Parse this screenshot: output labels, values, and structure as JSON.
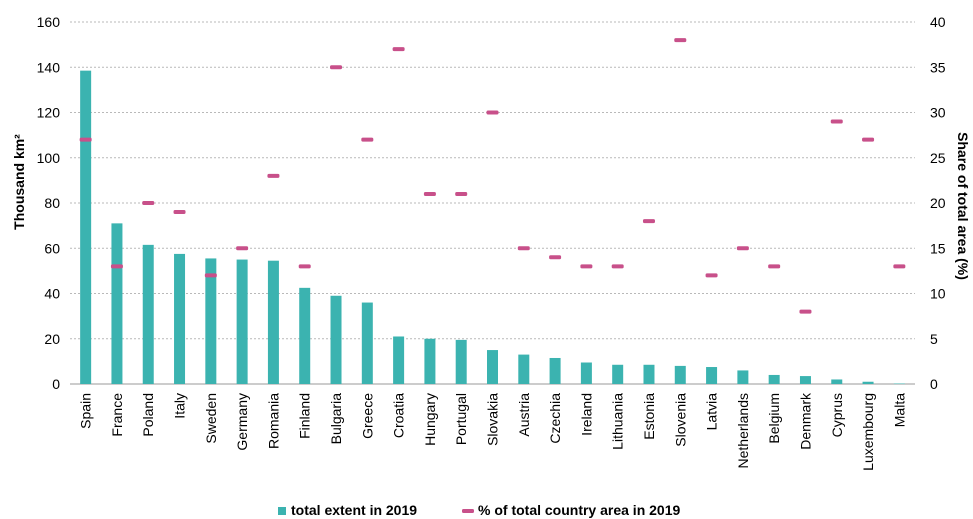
{
  "chart_data": {
    "type": "bar",
    "categories": [
      "Spain",
      "France",
      "Poland",
      "Italy",
      "Sweden",
      "Germany",
      "Romania",
      "Finland",
      "Bulgaria",
      "Greece",
      "Croatia",
      "Hungary",
      "Portugal",
      "Slovakia",
      "Austria",
      "Czechia",
      "Ireland",
      "Lithuania",
      "Estonia",
      "Slovenia",
      "Latvia",
      "Netherlands",
      "Belgium",
      "Denmark",
      "Cyprus",
      "Luxembourg",
      "Malta"
    ],
    "series": [
      {
        "name": "total extent in 2019",
        "type": "bar",
        "axis": "left",
        "color": "#3bb3b0",
        "values": [
          138.5,
          71,
          61.5,
          57.5,
          55.5,
          55,
          54.5,
          42.5,
          39,
          36,
          21,
          20,
          19.5,
          15,
          13,
          11.5,
          9.5,
          8.5,
          8.5,
          8,
          7.5,
          6,
          4,
          3.5,
          2,
          1,
          0.2
        ]
      },
      {
        "name": "% of total country area in 2019",
        "type": "marker",
        "axis": "right",
        "color": "#c8508a",
        "values": [
          27,
          13,
          20,
          19,
          12,
          15,
          23,
          13,
          35,
          27,
          37,
          21,
          21,
          30,
          15,
          14,
          13,
          13,
          18,
          38,
          12,
          15,
          13,
          8,
          29,
          27,
          13
        ]
      }
    ],
    "ylabel": "Thousand km²",
    "y2label": "Share of total area (%)",
    "ylim": [
      0,
      160
    ],
    "y2lim": [
      0,
      40
    ],
    "yticks": [
      "0",
      "20",
      "40",
      "60",
      "80",
      "100",
      "120",
      "140",
      "160"
    ],
    "y2ticks": [
      "0",
      "5",
      "10",
      "15",
      "20",
      "25",
      "30",
      "35",
      "40"
    ],
    "grid": true,
    "legend_position": "bottom"
  }
}
